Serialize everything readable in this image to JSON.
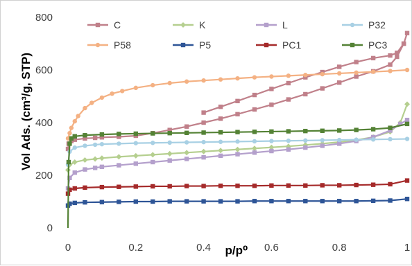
{
  "chart_data": {
    "type": "scatter",
    "title": "",
    "xlabel": "p/p⁰",
    "ylabel": "Vol Ads. (cm³/g, STP)",
    "xlim": [
      0,
      1
    ],
    "ylim": [
      0,
      800
    ],
    "x_ticks": [
      "0",
      "0.2",
      "0.4",
      "0.6",
      "0.8",
      "1"
    ],
    "y_ticks": [
      "0",
      "200",
      "400",
      "600",
      "800"
    ],
    "x_tick_values": [
      0,
      0.2,
      0.4,
      0.6,
      0.8,
      1
    ],
    "y_tick_values": [
      0,
      200,
      400,
      600,
      800
    ],
    "grid": false,
    "legend_position": "top, inside plot area",
    "series": [
      {
        "name": "C",
        "color": "#c0808a",
        "marker": "square",
        "x": [
          0.0,
          0.002,
          0.01,
          0.02,
          0.05,
          0.08,
          0.1,
          0.15,
          0.2,
          0.25,
          0.3,
          0.35,
          0.4,
          0.45,
          0.5,
          0.55,
          0.6,
          0.65,
          0.7,
          0.75,
          0.8,
          0.85,
          0.9,
          0.95,
          0.97,
          0.99,
          1.0,
          0.99,
          0.97,
          0.95,
          0.9,
          0.85,
          0.8,
          0.75,
          0.7,
          0.65,
          0.6,
          0.55,
          0.5,
          0.45,
          0.4
        ],
        "y": [
          300,
          320,
          330,
          335,
          340,
          342,
          344,
          346,
          350,
          360,
          372,
          385,
          400,
          415,
          432,
          450,
          468,
          488,
          508,
          530,
          552,
          575,
          595,
          620,
          650,
          700,
          740,
          700,
          665,
          655,
          645,
          630,
          612,
          592,
          572,
          550,
          528,
          505,
          482,
          460,
          438
        ]
      },
      {
        "name": "K",
        "color": "#b5cf8f",
        "marker": "diamond",
        "x": [
          0.0,
          0.005,
          0.02,
          0.05,
          0.08,
          0.1,
          0.15,
          0.2,
          0.25,
          0.3,
          0.35,
          0.4,
          0.45,
          0.5,
          0.55,
          0.6,
          0.65,
          0.7,
          0.75,
          0.8,
          0.85,
          0.9,
          0.95,
          0.98,
          1.0
        ],
        "y": [
          220,
          240,
          250,
          258,
          262,
          265,
          270,
          274,
          278,
          282,
          286,
          290,
          294,
          298,
          302,
          306,
          310,
          315,
          320,
          326,
          334,
          345,
          365,
          400,
          470
        ]
      },
      {
        "name": "L",
        "color": "#b4a0cc",
        "marker": "square",
        "x": [
          0.0,
          0.005,
          0.02,
          0.05,
          0.08,
          0.1,
          0.15,
          0.2,
          0.25,
          0.3,
          0.35,
          0.4,
          0.45,
          0.5,
          0.55,
          0.6,
          0.65,
          0.7,
          0.75,
          0.8,
          0.85,
          0.9,
          0.95,
          0.98,
          1.0
        ],
        "y": [
          150,
          190,
          210,
          222,
          228,
          232,
          238,
          244,
          250,
          256,
          262,
          268,
          274,
          280,
          286,
          292,
          298,
          305,
          312,
          320,
          330,
          345,
          370,
          395,
          410
        ]
      },
      {
        "name": "P32",
        "color": "#a8d0e4",
        "marker": "circle",
        "x": [
          0.0,
          0.005,
          0.02,
          0.05,
          0.08,
          0.1,
          0.15,
          0.2,
          0.25,
          0.3,
          0.35,
          0.4,
          0.45,
          0.5,
          0.55,
          0.6,
          0.65,
          0.7,
          0.75,
          0.8,
          0.85,
          0.9,
          0.95,
          1.0
        ],
        "y": [
          240,
          290,
          305,
          312,
          316,
          318,
          320,
          322,
          323,
          324,
          325,
          326,
          327,
          328,
          329,
          330,
          331,
          332,
          333,
          334,
          335,
          336,
          337,
          338
        ]
      },
      {
        "name": "P58",
        "color": "#f4b183",
        "marker": "circle",
        "x": [
          0.0,
          0.005,
          0.01,
          0.02,
          0.03,
          0.05,
          0.07,
          0.1,
          0.13,
          0.16,
          0.2,
          0.25,
          0.3,
          0.35,
          0.4,
          0.45,
          0.5,
          0.55,
          0.6,
          0.65,
          0.7,
          0.75,
          0.8,
          0.85,
          0.9,
          0.95,
          1.0
        ],
        "y": [
          340,
          360,
          380,
          405,
          425,
          455,
          475,
          495,
          510,
          520,
          532,
          542,
          550,
          556,
          560,
          564,
          568,
          572,
          575,
          578,
          581,
          584,
          587,
          590,
          593,
          596,
          600
        ]
      },
      {
        "name": "P5",
        "color": "#2e5597",
        "marker": "square",
        "x": [
          0.0,
          0.005,
          0.02,
          0.05,
          0.1,
          0.15,
          0.2,
          0.25,
          0.3,
          0.35,
          0.4,
          0.45,
          0.5,
          0.55,
          0.6,
          0.65,
          0.7,
          0.75,
          0.8,
          0.85,
          0.9,
          0.95,
          1.0
        ],
        "y": [
          85,
          92,
          95,
          97,
          98,
          99,
          100,
          100,
          101,
          101,
          101,
          101,
          101,
          102,
          102,
          102,
          102,
          102,
          102,
          102,
          103,
          104,
          110
        ]
      },
      {
        "name": "PC1",
        "color": "#a52a2a",
        "marker": "square",
        "x": [
          0.0,
          0.005,
          0.02,
          0.05,
          0.1,
          0.15,
          0.2,
          0.25,
          0.3,
          0.35,
          0.4,
          0.45,
          0.5,
          0.55,
          0.6,
          0.65,
          0.7,
          0.75,
          0.8,
          0.85,
          0.9,
          0.95,
          1.0
        ],
        "y": [
          130,
          145,
          150,
          153,
          155,
          156,
          157,
          158,
          158,
          159,
          159,
          160,
          160,
          160,
          161,
          161,
          161,
          162,
          162,
          163,
          164,
          166,
          180
        ]
      },
      {
        "name": "PC3",
        "color": "#548235",
        "marker": "square",
        "x": [
          0.0,
          0.002,
          0.005,
          0.01,
          0.02,
          0.05,
          0.1,
          0.15,
          0.2,
          0.25,
          0.3,
          0.35,
          0.4,
          0.45,
          0.5,
          0.55,
          0.6,
          0.65,
          0.7,
          0.75,
          0.8,
          0.85,
          0.9,
          0.95,
          1.0
        ],
        "y": [
          0,
          250,
          320,
          340,
          348,
          352,
          355,
          357,
          358,
          359,
          360,
          361,
          362,
          363,
          364,
          365,
          366,
          367,
          368,
          369,
          370,
          372,
          375,
          380,
          395
        ]
      }
    ]
  }
}
